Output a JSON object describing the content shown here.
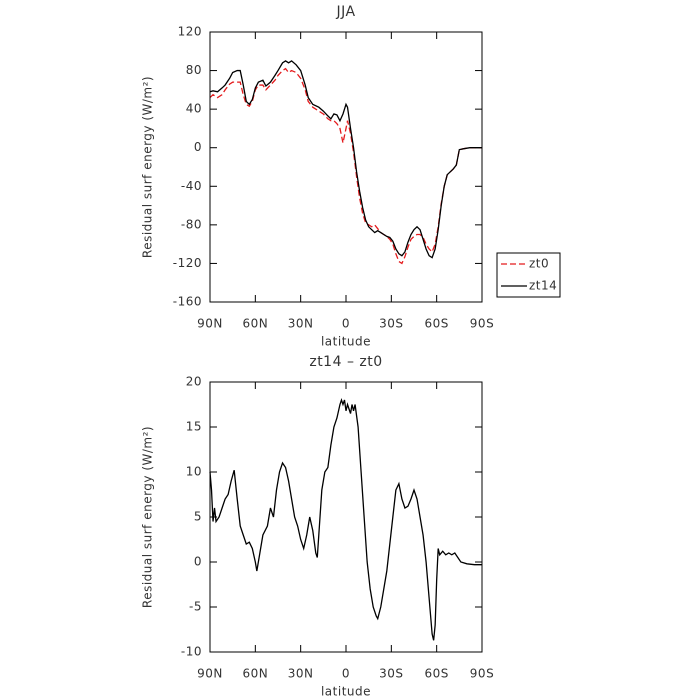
{
  "chart_data": [
    {
      "type": "line",
      "title": "JJA",
      "xlabel": "latitude",
      "ylabel": "Residual surf energy (W/m²)",
      "x": [
        90,
        88,
        85,
        82,
        80,
        77,
        75,
        72,
        70,
        68,
        66,
        64,
        62,
        60,
        58,
        55,
        53,
        50,
        47,
        45,
        42,
        40,
        38,
        36,
        33,
        30,
        27,
        25,
        22,
        18,
        15,
        12,
        10,
        8,
        6,
        4,
        2,
        0,
        -1,
        -3,
        -5,
        -7,
        -9,
        -11,
        -13,
        -15,
        -17,
        -19,
        -21,
        -23,
        -25,
        -27,
        -29,
        -31,
        -33,
        -35,
        -37,
        -39,
        -41,
        -43,
        -45,
        -47,
        -49,
        -51,
        -53,
        -55,
        -57,
        -59,
        -61,
        -63,
        -65,
        -67,
        -69,
        -71,
        -73,
        -75,
        -78,
        -82,
        -86,
        -90
      ],
      "series": [
        {
          "name": "zt0",
          "color": "#e41a1c",
          "linestyle": "dashed",
          "values": [
            52,
            55,
            52,
            55,
            60,
            66,
            68,
            68,
            68,
            55,
            45,
            43,
            48,
            60,
            65,
            65,
            60,
            65,
            70,
            75,
            80,
            82,
            78,
            80,
            78,
            72,
            60,
            48,
            42,
            38,
            35,
            30,
            28,
            28,
            25,
            20,
            5,
            20,
            28,
            15,
            -5,
            -30,
            -52,
            -68,
            -78,
            -80,
            -82,
            -80,
            -84,
            -88,
            -90,
            -92,
            -95,
            -100,
            -110,
            -118,
            -120,
            -113,
            -103,
            -95,
            -92,
            -90,
            -90,
            -93,
            -100,
            -105,
            -108,
            -100,
            -82,
            -58,
            -40,
            -28,
            -25,
            -22,
            -18,
            -2,
            -1,
            0,
            0,
            0
          ]
        },
        {
          "name": "zt14",
          "color": "#000000",
          "linestyle": "solid",
          "values": [
            58,
            59,
            58,
            62,
            65,
            72,
            78,
            80,
            80,
            65,
            48,
            45,
            50,
            62,
            68,
            70,
            64,
            68,
            75,
            80,
            88,
            90,
            88,
            90,
            86,
            80,
            65,
            52,
            45,
            42,
            38,
            33,
            30,
            35,
            34,
            28,
            35,
            45,
            42,
            20,
            0,
            -25,
            -45,
            -62,
            -75,
            -82,
            -85,
            -88,
            -86,
            -88,
            -90,
            -92,
            -93,
            -97,
            -105,
            -110,
            -112,
            -108,
            -98,
            -90,
            -85,
            -82,
            -85,
            -95,
            -105,
            -112,
            -114,
            -105,
            -85,
            -60,
            -40,
            -28,
            -25,
            -22,
            -18,
            -2,
            -1,
            0,
            0,
            0
          ]
        }
      ],
      "xlim": [
        90,
        -90
      ],
      "xticks": [
        {
          "value": 90,
          "label": "90N"
        },
        {
          "value": 60,
          "label": "60N"
        },
        {
          "value": 30,
          "label": "30N"
        },
        0,
        {
          "value": -30,
          "label": "30S"
        },
        {
          "value": -60,
          "label": "60S"
        },
        {
          "value": -90,
          "label": "90S"
        }
      ],
      "ylim": [
        -160,
        120
      ],
      "yticks": [
        -160,
        -120,
        -80,
        -40,
        0,
        40,
        80,
        120
      ],
      "legend": "right"
    },
    {
      "type": "line",
      "title": "zt14 – zt0",
      "xlabel": "latitude",
      "ylabel": "Residual surf energy (W/m²)",
      "x": [
        90,
        89,
        88,
        87,
        86,
        84,
        82,
        80,
        78,
        76,
        74,
        72,
        70,
        68,
        66,
        64,
        62,
        60,
        59,
        57,
        55,
        52,
        50,
        48,
        46,
        44,
        42,
        40,
        38,
        36,
        34,
        32,
        30,
        28,
        26,
        24,
        22,
        20,
        19,
        18,
        16,
        14,
        12,
        10,
        8,
        6,
        4,
        3,
        2,
        1,
        0,
        -1,
        -2,
        -3,
        -4,
        -5,
        -6,
        -8,
        -10,
        -12,
        -14,
        -16,
        -18,
        -20,
        -21,
        -23,
        -25,
        -27,
        -29,
        -31,
        -33,
        -35,
        -37,
        -39,
        -41,
        -43,
        -45,
        -47,
        -49,
        -51,
        -53,
        -55,
        -57,
        -58,
        -59,
        -60,
        -61,
        -62,
        -64,
        -66,
        -68,
        -70,
        -72,
        -74,
        -76,
        -80,
        -85,
        -90
      ],
      "series": [
        {
          "name": "zt14 – zt0",
          "color": "#000000",
          "linestyle": "solid",
          "values": [
            10,
            8,
            4.5,
            6,
            4.5,
            5,
            6,
            7,
            7.5,
            9,
            10.2,
            7,
            4,
            3,
            2,
            2.2,
            1.5,
            0,
            -1,
            1,
            3,
            4,
            6,
            5,
            8,
            10,
            11,
            10.5,
            9,
            7,
            5,
            4,
            2.5,
            1.5,
            3,
            5,
            3.5,
            1,
            0.5,
            3,
            8,
            10,
            10.5,
            13,
            15,
            16,
            17.5,
            18,
            17.5,
            18,
            16.8,
            17.5,
            17,
            16.5,
            17.5,
            16.8,
            17.5,
            15,
            10,
            5,
            0,
            -3,
            -5,
            -6,
            -6.3,
            -5,
            -3,
            -1,
            2,
            5,
            8,
            8.7,
            7,
            6,
            6.2,
            7,
            8,
            7,
            5,
            3,
            0,
            -4,
            -8,
            -8.7,
            -7,
            -2,
            1.5,
            0.8,
            1.2,
            0.8,
            1,
            0.8,
            1,
            0.5,
            0,
            -0.2,
            -0.3,
            -0.3
          ]
        }
      ],
      "xlim": [
        90,
        -90
      ],
      "xticks": [
        {
          "value": 90,
          "label": "90N"
        },
        {
          "value": 60,
          "label": "60N"
        },
        {
          "value": 30,
          "label": "30N"
        },
        0,
        {
          "value": -30,
          "label": "30S"
        },
        {
          "value": -60,
          "label": "60S"
        },
        {
          "value": -90,
          "label": "90S"
        }
      ],
      "ylim": [
        -10,
        20
      ],
      "yticks": [
        -10,
        -5,
        0,
        5,
        10,
        15,
        20
      ]
    }
  ]
}
